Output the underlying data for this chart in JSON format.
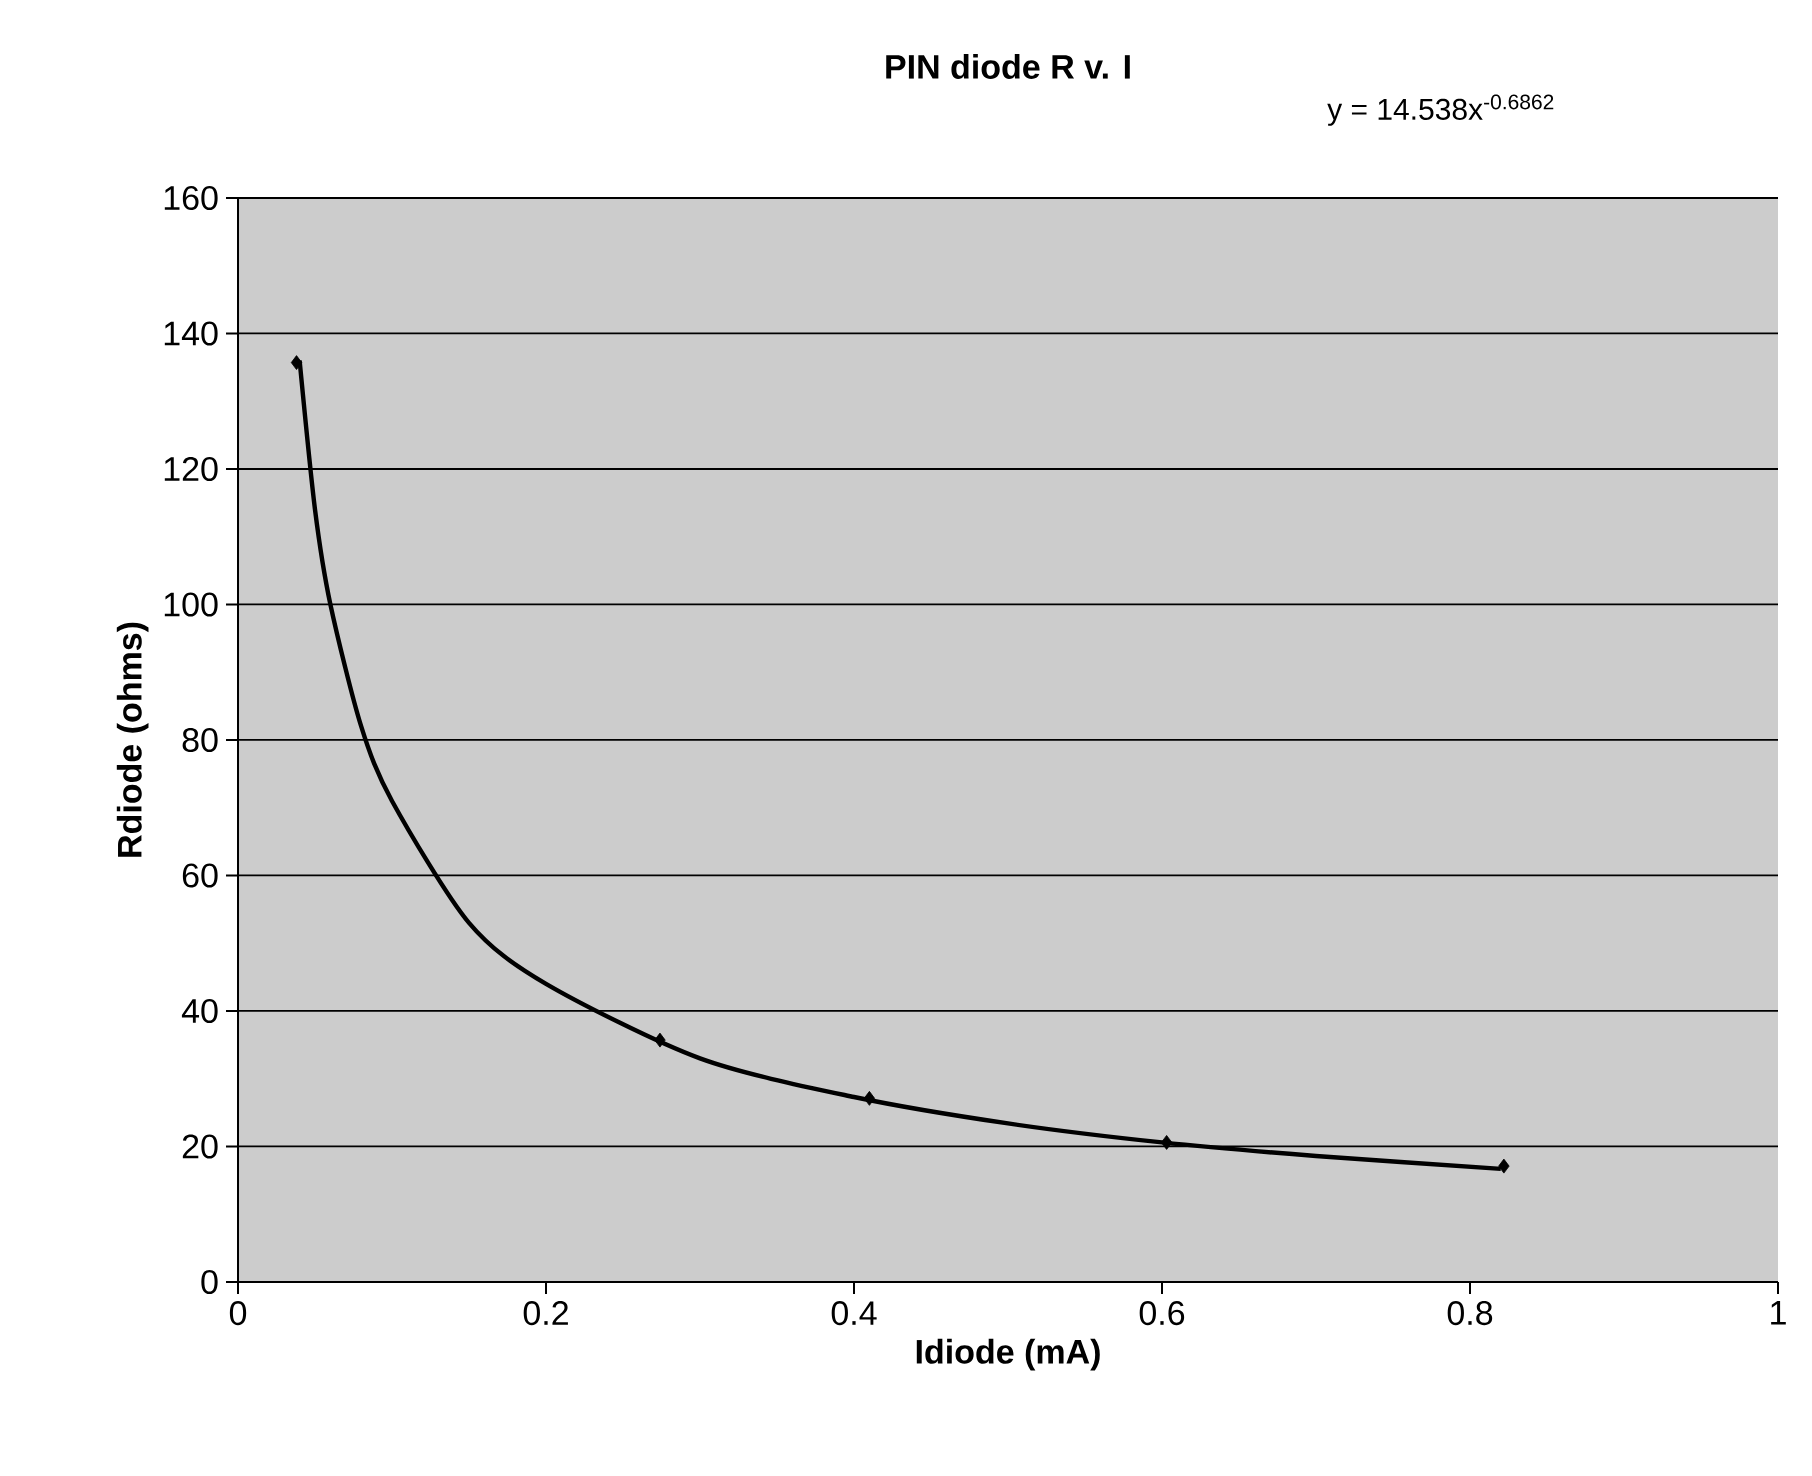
{
  "chart_data": {
    "type": "scatter",
    "title": "PIN diode R v. I",
    "xlabel": "Idiode (mA)",
    "ylabel": "Rdiode (ohms)",
    "annotations": [
      "y = 14.538x$^{-0.6862}$"
    ],
    "xlim": [
      0,
      1
    ],
    "xticks": [
      0,
      0.2,
      0.4,
      0.6,
      0.8,
      1
    ],
    "ylim": [
      0,
      160
    ],
    "yticks": [
      0,
      20,
      40,
      60,
      80,
      100,
      120,
      140,
      160
    ],
    "grid": "y",
    "series": [
      {
        "color": "#000000",
        "marker": "diamond",
        "x": [
          0.038,
          0.274,
          0.41,
          0.603,
          0.822
        ],
        "values": [
          135.7,
          35.7,
          27.1,
          20.6,
          17.1
        ]
      },
      {
        "type": "line",
        "color": "#000000",
        "line_style": "solid",
        "x": [
          0.04,
          0.05,
          0.06,
          0.08,
          0.1,
          0.15,
          0.2,
          0.3,
          0.4,
          0.5,
          0.6,
          0.7,
          0.82
        ],
        "values": [
          136,
          114,
          100,
          82,
          71,
          53,
          44,
          33,
          27.3,
          23.4,
          20.6,
          18.6,
          16.7
        ]
      }
    ]
  }
}
